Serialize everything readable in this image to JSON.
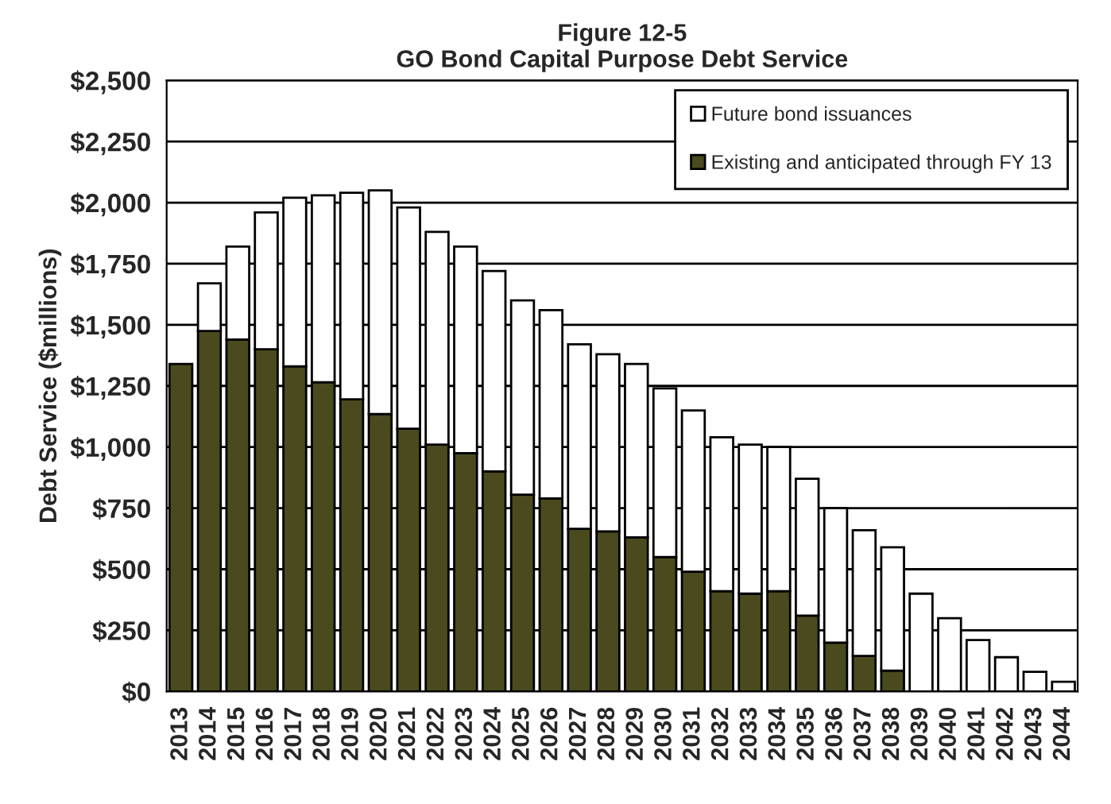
{
  "chart_data": {
    "type": "bar",
    "title": "Figure 12-5\nGO Bond Capital Purpose Debt Service",
    "ylabel": "Debt Service ($millions)",
    "categories": [
      "2013",
      "2014",
      "2015",
      "2016",
      "2017",
      "2018",
      "2019",
      "2020",
      "2021",
      "2022",
      "2023",
      "2024",
      "2025",
      "2026",
      "2027",
      "2028",
      "2029",
      "2030",
      "2031",
      "2032",
      "2033",
      "2034",
      "2035",
      "2036",
      "2037",
      "2038",
      "2039",
      "2040",
      "2041",
      "2042",
      "2043",
      "2044"
    ],
    "stacked": true,
    "series": [
      {
        "name": "Existing and anticipated through FY 13",
        "color": "#4a4a1e",
        "values": [
          1340,
          1475,
          1440,
          1400,
          1330,
          1265,
          1195,
          1135,
          1075,
          1010,
          975,
          900,
          805,
          790,
          665,
          655,
          630,
          550,
          490,
          410,
          400,
          410,
          310,
          200,
          145,
          85,
          0,
          0,
          0,
          0,
          0,
          0
        ]
      },
      {
        "name": "Future bond issuances",
        "color": "#ffffff",
        "values": [
          0,
          195,
          380,
          560,
          690,
          765,
          845,
          915,
          905,
          870,
          845,
          820,
          795,
          770,
          755,
          725,
          710,
          690,
          660,
          630,
          610,
          590,
          560,
          550,
          515,
          505,
          400,
          300,
          210,
          140,
          80,
          40
        ]
      }
    ],
    "ylim": [
      0,
      2500
    ],
    "yticks": [
      {
        "value": 0,
        "label": "$0"
      },
      {
        "value": 250,
        "label": "$250"
      },
      {
        "value": 500,
        "label": "$500"
      },
      {
        "value": 750,
        "label": "$750"
      },
      {
        "value": 1000,
        "label": "$1,000"
      },
      {
        "value": 1250,
        "label": "$1,250"
      },
      {
        "value": 1500,
        "label": "$1,500"
      },
      {
        "value": 1750,
        "label": "$1,750"
      },
      {
        "value": 2000,
        "label": "$2,000"
      },
      {
        "value": 2250,
        "label": "$2,250"
      },
      {
        "value": 2500,
        "label": "$2,500"
      }
    ],
    "grid": "y",
    "legend": "top right"
  }
}
